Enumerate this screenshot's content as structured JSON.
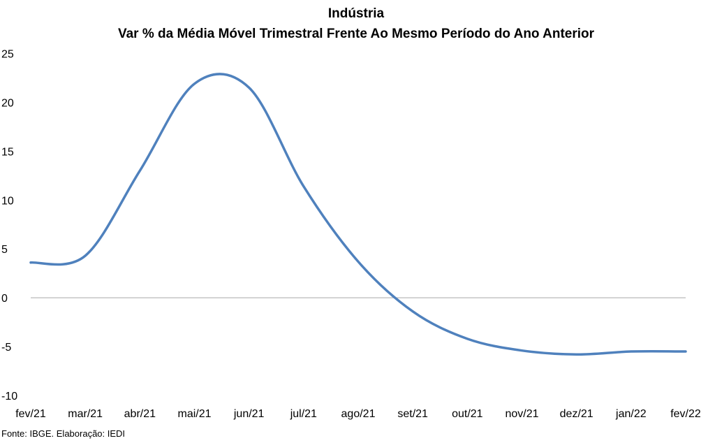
{
  "chart_data": {
    "type": "line",
    "title": "Indústria",
    "subtitle": "Var % da Média Móvel Trimestral Frente Ao Mesmo Período do Ano Anterior",
    "xlabel": "",
    "ylabel": "",
    "categories": [
      "fev/21",
      "mar/21",
      "abr/21",
      "mai/21",
      "jun/21",
      "jul/21",
      "ago/21",
      "set/21",
      "out/21",
      "nov/21",
      "dez/21",
      "jan/22",
      "fev/22"
    ],
    "series": [
      {
        "values": [
          3.6,
          4.3,
          13.0,
          21.9,
          21.5,
          11.4,
          3.7,
          -1.4,
          -4.2,
          -5.4,
          -5.8,
          -5.5,
          -5.5
        ]
      }
    ],
    "ylim": [
      -10,
      25
    ],
    "yticks": [
      -10,
      -5,
      0,
      5,
      10,
      15,
      20,
      25
    ],
    "grid": false,
    "legend": "none",
    "line_color": "#4F81BD",
    "zero_line_color": "#a6a6a6"
  },
  "source_note": "Fonte: IBGE. Elaboração: IEDI"
}
